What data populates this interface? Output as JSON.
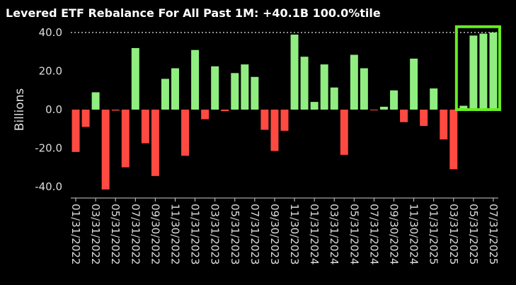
{
  "chart_data": {
    "type": "bar",
    "title": "Levered ETF Rebalance For All Past 1M: +40.1B 100.0%tile",
    "xlabel": "",
    "ylabel": "Billions",
    "ylim": [
      -45,
      42
    ],
    "yticks": [
      40,
      20,
      0,
      -20,
      -40
    ],
    "ytick_labels": [
      "40.0",
      "20.0",
      "0.0",
      "-20.0",
      "-40.0"
    ],
    "reference_line": 40.1,
    "positive_color": "#90ee80",
    "negative_color": "#ff4a42",
    "highlight_color": "#66ee22",
    "highlight_last_n": 4,
    "values": [
      -22,
      -9,
      9,
      -41.5,
      -0.5,
      -30,
      32,
      -17.5,
      -34.5,
      16,
      21.5,
      -24,
      31,
      -5,
      22.5,
      -0.8,
      19,
      23.5,
      17,
      -10.5,
      -21.5,
      -11,
      39,
      27.5,
      4,
      23.5,
      11.5,
      -23.5,
      28.5,
      21.5,
      -0.3,
      1.5,
      10,
      -6.5,
      26.5,
      -8.5,
      11,
      -15.5,
      -31,
      2,
      38.5,
      39.5,
      40.1
    ],
    "tick_labels": [
      "01/31/2022",
      "03/31/2022",
      "05/31/2022",
      "07/31/2022",
      "09/30/2022",
      "11/30/2022",
      "01/31/2023",
      "03/31/2023",
      "05/31/2023",
      "07/31/2023",
      "09/30/2023",
      "11/30/2023",
      "01/31/2024",
      "03/31/2024",
      "05/31/2024",
      "07/31/2024",
      "09/30/2024",
      "11/30/2024",
      "01/31/2025",
      "03/31/2025",
      "05/31/2025",
      "07/31/2025"
    ]
  }
}
